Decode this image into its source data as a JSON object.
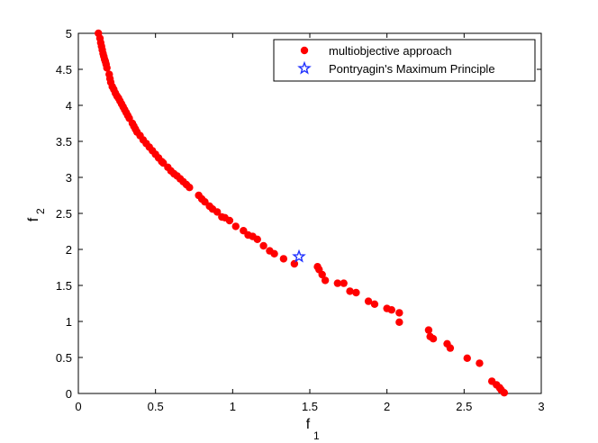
{
  "chart_data": {
    "type": "scatter",
    "title": "",
    "xlabel": "f",
    "xlabel_sub": "1",
    "ylabel": "f",
    "ylabel_sub": "2",
    "xlim": [
      0,
      3
    ],
    "ylim": [
      0,
      5
    ],
    "xticks": [
      0,
      0.5,
      1,
      1.5,
      2,
      2.5,
      3
    ],
    "xtick_labels": [
      "0",
      "0.5",
      "1",
      "1.5",
      "2",
      "2.5",
      "3"
    ],
    "yticks": [
      0,
      0.5,
      1,
      1.5,
      2,
      2.5,
      3,
      3.5,
      4,
      4.5,
      5
    ],
    "ytick_labels": [
      "0",
      "0.5",
      "1",
      "1.5",
      "2",
      "2.5",
      "3",
      "3.5",
      "4",
      "4.5",
      "5"
    ],
    "grid": false,
    "legend_position": "top-right",
    "series": [
      {
        "name": "multiobjective approach",
        "marker": "filled-circle",
        "color": "#ff0000",
        "points": [
          [
            0.13,
            5.0
          ],
          [
            0.14,
            4.93
          ],
          [
            0.145,
            4.87
          ],
          [
            0.15,
            4.82
          ],
          [
            0.155,
            4.77
          ],
          [
            0.16,
            4.72
          ],
          [
            0.165,
            4.68
          ],
          [
            0.17,
            4.64
          ],
          [
            0.175,
            4.61
          ],
          [
            0.18,
            4.57
          ],
          [
            0.185,
            4.52
          ],
          [
            0.2,
            4.43
          ],
          [
            0.205,
            4.37
          ],
          [
            0.21,
            4.32
          ],
          [
            0.22,
            4.26
          ],
          [
            0.23,
            4.22
          ],
          [
            0.24,
            4.17
          ],
          [
            0.25,
            4.13
          ],
          [
            0.26,
            4.1
          ],
          [
            0.27,
            4.06
          ],
          [
            0.28,
            4.02
          ],
          [
            0.29,
            3.98
          ],
          [
            0.3,
            3.94
          ],
          [
            0.31,
            3.9
          ],
          [
            0.32,
            3.86
          ],
          [
            0.33,
            3.82
          ],
          [
            0.35,
            3.75
          ],
          [
            0.36,
            3.71
          ],
          [
            0.37,
            3.67
          ],
          [
            0.38,
            3.63
          ],
          [
            0.4,
            3.58
          ],
          [
            0.42,
            3.52
          ],
          [
            0.44,
            3.47
          ],
          [
            0.46,
            3.42
          ],
          [
            0.48,
            3.37
          ],
          [
            0.5,
            3.32
          ],
          [
            0.52,
            3.27
          ],
          [
            0.54,
            3.22
          ],
          [
            0.55,
            3.2
          ],
          [
            0.58,
            3.14
          ],
          [
            0.6,
            3.09
          ],
          [
            0.62,
            3.05
          ],
          [
            0.64,
            3.02
          ],
          [
            0.66,
            2.98
          ],
          [
            0.68,
            2.94
          ],
          [
            0.7,
            2.9
          ],
          [
            0.72,
            2.86
          ],
          [
            0.78,
            2.75
          ],
          [
            0.8,
            2.7
          ],
          [
            0.82,
            2.66
          ],
          [
            0.85,
            2.6
          ],
          [
            0.87,
            2.56
          ],
          [
            0.9,
            2.52
          ],
          [
            0.93,
            2.45
          ],
          [
            0.95,
            2.44
          ],
          [
            0.98,
            2.4
          ],
          [
            1.02,
            2.32
          ],
          [
            1.07,
            2.26
          ],
          [
            1.1,
            2.2
          ],
          [
            1.13,
            2.18
          ],
          [
            1.16,
            2.14
          ],
          [
            1.2,
            2.05
          ],
          [
            1.24,
            1.98
          ],
          [
            1.27,
            1.94
          ],
          [
            1.33,
            1.87
          ],
          [
            1.4,
            1.8
          ],
          [
            1.55,
            1.76
          ],
          [
            1.56,
            1.72
          ],
          [
            1.58,
            1.65
          ],
          [
            1.6,
            1.57
          ],
          [
            1.68,
            1.53
          ],
          [
            1.72,
            1.53
          ],
          [
            1.76,
            1.42
          ],
          [
            1.8,
            1.4
          ],
          [
            1.88,
            1.28
          ],
          [
            1.92,
            1.24
          ],
          [
            2.0,
            1.18
          ],
          [
            2.03,
            1.16
          ],
          [
            2.08,
            1.12
          ],
          [
            2.08,
            0.99
          ],
          [
            2.27,
            0.88
          ],
          [
            2.28,
            0.79
          ],
          [
            2.3,
            0.76
          ],
          [
            2.39,
            0.69
          ],
          [
            2.41,
            0.63
          ],
          [
            2.52,
            0.49
          ],
          [
            2.6,
            0.42
          ],
          [
            2.68,
            0.17
          ],
          [
            2.71,
            0.12
          ],
          [
            2.73,
            0.08
          ],
          [
            2.74,
            0.05
          ],
          [
            2.76,
            0.01
          ]
        ]
      },
      {
        "name": "Pontryagin's Maximum Principle",
        "marker": "star-outline",
        "color": "#2233ff",
        "points": [
          [
            1.43,
            1.9
          ]
        ]
      }
    ]
  }
}
